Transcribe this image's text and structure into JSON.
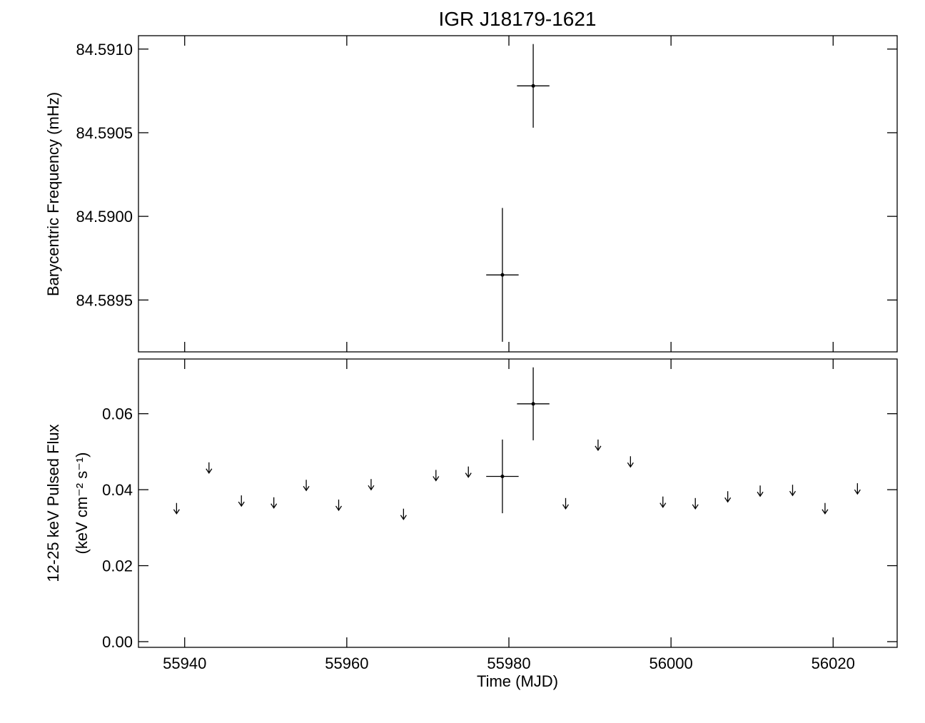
{
  "chart_data": [
    {
      "type": "errorbar",
      "title": "IGR J18179-1621",
      "y_label": "Barycentric Frequency (mHz)",
      "x": [
        55979.2,
        55983.0
      ],
      "values": [
        84.58965,
        84.59078
      ],
      "y_errors": [
        0.0004,
        0.00025
      ],
      "x_errors": [
        2,
        2
      ],
      "xlim": [
        55934.3,
        56027.9
      ],
      "ylim": [
        84.58919,
        84.59108
      ],
      "yticks": [
        {
          "value": 84.591,
          "label": "84.5910"
        },
        84.5905,
        {
          "value": 84.59,
          "label": "84.5900"
        },
        84.5895
      ]
    },
    {
      "type": "errorbar",
      "x_label": "Time (MJD)",
      "y_label": "12-25 keV Pulsed Flux",
      "y_label_2": "(keV cm⁻² s⁻¹)",
      "x": [
        55979.2,
        55983.0
      ],
      "values": [
        0.0435,
        0.0626
      ],
      "y_errors": [
        0.0097,
        0.0096
      ],
      "x_errors": [
        2,
        2
      ],
      "upper_limit_x": [
        55939,
        55943,
        55947,
        55951,
        55955,
        55959,
        55963,
        55967,
        55971,
        55975,
        55987,
        55991,
        55995,
        55999,
        56003,
        56007,
        56011,
        56015,
        56019,
        56023
      ],
      "upper_limit_values": [
        0.0365,
        0.0472,
        0.0385,
        0.038,
        0.0426,
        0.0374,
        0.0428,
        0.035,
        0.0452,
        0.0461,
        0.0378,
        0.0532,
        0.0488,
        0.0382,
        0.0378,
        0.0396,
        0.0411,
        0.0413,
        0.0365,
        0.0417
      ],
      "xlim": [
        55934.3,
        56027.9
      ],
      "ylim": [
        -0.0015,
        0.0744
      ],
      "xticks": [
        55940,
        55960,
        55980,
        56000,
        56020
      ],
      "yticks": [
        {
          "value": 0,
          "label": "0.00"
        },
        0.02,
        0.04,
        0.06
      ]
    }
  ]
}
